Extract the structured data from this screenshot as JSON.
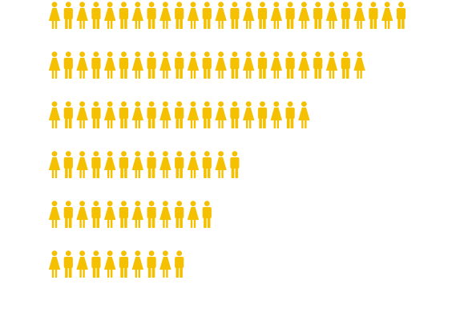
{
  "chart_data": {
    "type": "bar",
    "orientation": "horizontal",
    "style": "pictogram",
    "icon": "person-icon-alternating-female-male",
    "icon_color": "#F5C000",
    "background_color": "#FFFFFF",
    "categories": [
      "",
      "",
      "",
      "",
      "",
      ""
    ],
    "values": [
      26,
      23,
      19,
      14,
      12,
      10
    ],
    "title": "",
    "xlabel": "",
    "ylabel": "",
    "legend": "none",
    "grid": false
  }
}
